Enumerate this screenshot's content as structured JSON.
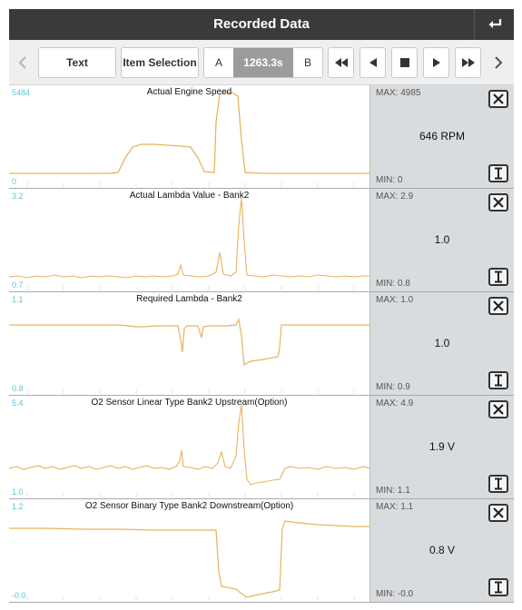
{
  "header": {
    "title": "Recorded Data",
    "back_icon": "return-arrow-icon"
  },
  "toolbar": {
    "text_label": "Text",
    "item_selection_label": "Item Selection",
    "marker_a": "A",
    "time": "1263.3s",
    "marker_b": "B"
  },
  "colors": {
    "trace": "#e7b35f",
    "scale": "#5fc6d8",
    "side_bg": "#d9dcdf",
    "title_bg": "#3a3a3a"
  },
  "panels": [
    {
      "title": "Actual Engine Speed",
      "scale_top": "5484",
      "scale_bottom": "0",
      "max": "MAX: 4985",
      "min": "MIN: 0",
      "value": "646 RPM"
    },
    {
      "title": "Actual Lambda Value - Bank2",
      "scale_top": "3.2",
      "scale_bottom": "0.7",
      "max": "MAX: 2.9",
      "min": "MIN: 0.8",
      "value": "1.0"
    },
    {
      "title": "Required Lambda - Bank2",
      "scale_top": "1.1",
      "scale_bottom": "0.8",
      "max": "MAX: 1.0",
      "min": "MIN: 0.9",
      "value": "1.0"
    },
    {
      "title": "O2 Sensor Linear Type Bank2 Upstream(Option)",
      "scale_top": "5.4",
      "scale_bottom": "1.0",
      "max": "MAX: 4.9",
      "min": "MIN: 1.1",
      "value": "1.9 V"
    },
    {
      "title": "O2 Sensor Binary Type Bank2 Downstream(Option)",
      "scale_top": "1.2",
      "scale_bottom": "-0.0",
      "max": "MAX: 1.1",
      "min": "MIN: -0.0",
      "value": "0.8 V"
    }
  ]
}
